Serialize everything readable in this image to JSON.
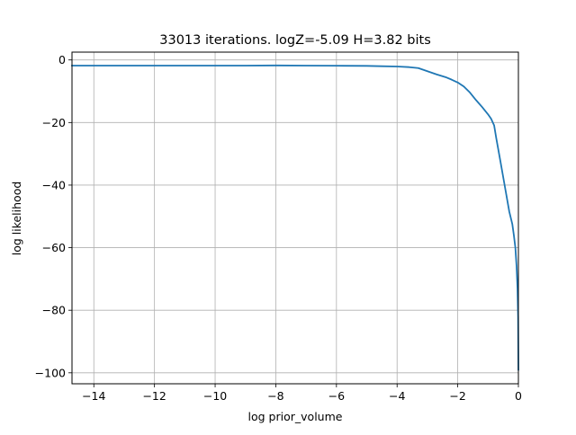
{
  "chart_data": {
    "type": "line",
    "title": "33013 iterations. logZ=-5.09 H=3.82 bits",
    "xlabel": "log prior_volume",
    "ylabel": "log likelihood",
    "xlim": [
      -14.72,
      0
    ],
    "ylim": [
      -103.5,
      2.5
    ],
    "xticks": [
      -14,
      -12,
      -10,
      -8,
      -6,
      -4,
      -2,
      0
    ],
    "yticks": [
      0,
      -20,
      -40,
      -60,
      -80,
      -100
    ],
    "grid": true,
    "line_color": "#1f77b4",
    "series": [
      {
        "x": [
          -14.72,
          -13.0,
          -11.0,
          -9.0,
          -8.0,
          -7.0,
          -6.0,
          -5.0,
          -4.5,
          -4.0,
          -3.6,
          -3.3,
          -3.0,
          -2.7,
          -2.4,
          -2.2,
          -2.0,
          -1.8,
          -1.6,
          -1.4,
          -1.2,
          -1.0,
          -0.9,
          -0.8,
          -0.73,
          -0.6,
          -0.5,
          -0.4,
          -0.3,
          -0.2,
          -0.15,
          -0.1,
          -0.06,
          -0.03,
          -0.01,
          0.0
        ],
        "y": [
          -1.8,
          -1.8,
          -1.8,
          -1.8,
          -1.75,
          -1.8,
          -1.85,
          -1.9,
          -2.0,
          -2.1,
          -2.3,
          -2.6,
          -3.6,
          -4.6,
          -5.5,
          -6.3,
          -7.2,
          -8.5,
          -10.4,
          -12.8,
          -15.0,
          -17.4,
          -18.8,
          -20.9,
          -25.0,
          -32.0,
          -37.5,
          -43.0,
          -48.5,
          -52.5,
          -56.0,
          -60.0,
          -66.0,
          -73.0,
          -82.0,
          -99.0
        ]
      }
    ]
  }
}
